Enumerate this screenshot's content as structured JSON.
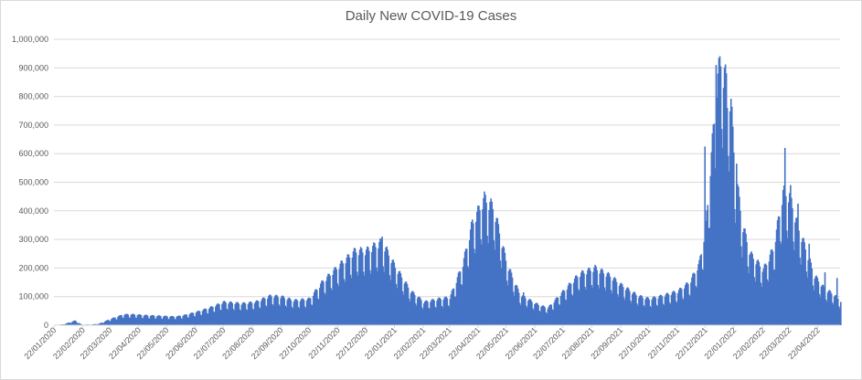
{
  "chart_data": {
    "type": "bar",
    "title": "Daily New COVID-19 Cases",
    "xlabel": "",
    "ylabel": "",
    "ylim": [
      0,
      1000000
    ],
    "y_ticks": [
      "0",
      "100,000",
      "200,000",
      "300,000",
      "400,000",
      "500,000",
      "600,000",
      "700,000",
      "800,000",
      "900,000",
      "1,000,000"
    ],
    "x_range": [
      "2020-01-22",
      "2022-05-16"
    ],
    "x_ticks": [
      "22/01/2020",
      "22/02/2020",
      "22/03/2020",
      "22/04/2020",
      "22/05/2020",
      "22/06/2020",
      "22/07/2020",
      "22/08/2020",
      "22/09/2020",
      "22/10/2020",
      "22/11/2020",
      "22/12/2020",
      "22/01/2021",
      "22/02/2021",
      "22/03/2021",
      "22/04/2021",
      "22/05/2021",
      "22/06/2021",
      "22/07/2021",
      "22/08/2021",
      "22/09/2021",
      "22/10/2021",
      "22/11/2021",
      "22/12/2021",
      "22/01/2022",
      "22/02/2022",
      "22/03/2022",
      "22/04/2022"
    ],
    "bar_color": "#4472C4",
    "grid": true,
    "legend": "none",
    "series_points": [
      [
        "2020-01-22",
        0
      ],
      [
        "2020-02-01",
        3000
      ],
      [
        "2020-02-13",
        15000
      ],
      [
        "2020-02-20",
        2000
      ],
      [
        "2020-03-01",
        2000
      ],
      [
        "2020-03-10",
        5000
      ],
      [
        "2020-03-22",
        20000
      ],
      [
        "2020-04-05",
        35000
      ],
      [
        "2020-04-15",
        35000
      ],
      [
        "2020-04-30",
        32000
      ],
      [
        "2020-05-15",
        30000
      ],
      [
        "2020-05-31",
        28000
      ],
      [
        "2020-06-10",
        33000
      ],
      [
        "2020-06-25",
        45000
      ],
      [
        "2020-07-10",
        60000
      ],
      [
        "2020-07-22",
        75000
      ],
      [
        "2020-08-10",
        70000
      ],
      [
        "2020-08-25",
        75000
      ],
      [
        "2020-09-10",
        95000
      ],
      [
        "2020-09-22",
        92000
      ],
      [
        "2020-10-05",
        80000
      ],
      [
        "2020-10-22",
        85000
      ],
      [
        "2020-11-05",
        140000
      ],
      [
        "2020-11-22",
        190000
      ],
      [
        "2020-12-10",
        240000
      ],
      [
        "2020-12-22",
        240000
      ],
      [
        "2021-01-08",
        270000
      ],
      [
        "2021-01-22",
        190000
      ],
      [
        "2021-02-08",
        110000
      ],
      [
        "2021-02-22",
        75000
      ],
      [
        "2021-03-10",
        85000
      ],
      [
        "2021-03-22",
        90000
      ],
      [
        "2021-04-05",
        200000
      ],
      [
        "2021-04-15",
        330000
      ],
      [
        "2021-04-28",
        410000
      ],
      [
        "2021-05-08",
        380000
      ],
      [
        "2021-05-22",
        200000
      ],
      [
        "2021-06-05",
        100000
      ],
      [
        "2021-06-22",
        70000
      ],
      [
        "2021-07-05",
        55000
      ],
      [
        "2021-07-22",
        110000
      ],
      [
        "2021-08-08",
        165000
      ],
      [
        "2021-08-25",
        185000
      ],
      [
        "2021-09-10",
        160000
      ],
      [
        "2021-09-22",
        130000
      ],
      [
        "2021-10-10",
        95000
      ],
      [
        "2021-10-22",
        85000
      ],
      [
        "2021-11-05",
        95000
      ],
      [
        "2021-11-22",
        110000
      ],
      [
        "2021-12-05",
        140000
      ],
      [
        "2021-12-15",
        200000
      ],
      [
        "2021-12-22",
        320000
      ],
      [
        "2021-12-28",
        550000
      ],
      [
        "2022-01-03",
        780000
      ],
      [
        "2022-01-08",
        880000
      ],
      [
        "2022-01-12",
        800000
      ],
      [
        "2022-01-18",
        720000
      ],
      [
        "2022-01-22",
        520000
      ],
      [
        "2022-01-30",
        330000
      ],
      [
        "2022-02-08",
        230000
      ],
      [
        "2022-02-22",
        180000
      ],
      [
        "2022-03-05",
        250000
      ],
      [
        "2022-03-15",
        430000
      ],
      [
        "2022-03-22",
        420000
      ],
      [
        "2022-03-30",
        330000
      ],
      [
        "2022-04-08",
        250000
      ],
      [
        "2022-04-18",
        160000
      ],
      [
        "2022-04-28",
        120000
      ],
      [
        "2022-05-08",
        100000
      ],
      [
        "2022-05-16",
        80000
      ]
    ],
    "spikes": [
      [
        "2022-01-02",
        910000
      ],
      [
        "2022-01-07",
        905000
      ],
      [
        "2022-01-10",
        830000
      ],
      [
        "2022-01-14",
        760000
      ],
      [
        "2022-01-24",
        565000
      ],
      [
        "2021-12-21",
        625000
      ],
      [
        "2022-03-17",
        620000
      ],
      [
        "2022-03-23",
        490000
      ],
      [
        "2022-03-31",
        425000
      ],
      [
        "2021-01-08",
        310000
      ],
      [
        "2022-04-12",
        285000
      ],
      [
        "2021-06-09",
        115000
      ],
      [
        "2022-04-29",
        185000
      ],
      [
        "2022-05-12",
        165000
      ]
    ]
  }
}
